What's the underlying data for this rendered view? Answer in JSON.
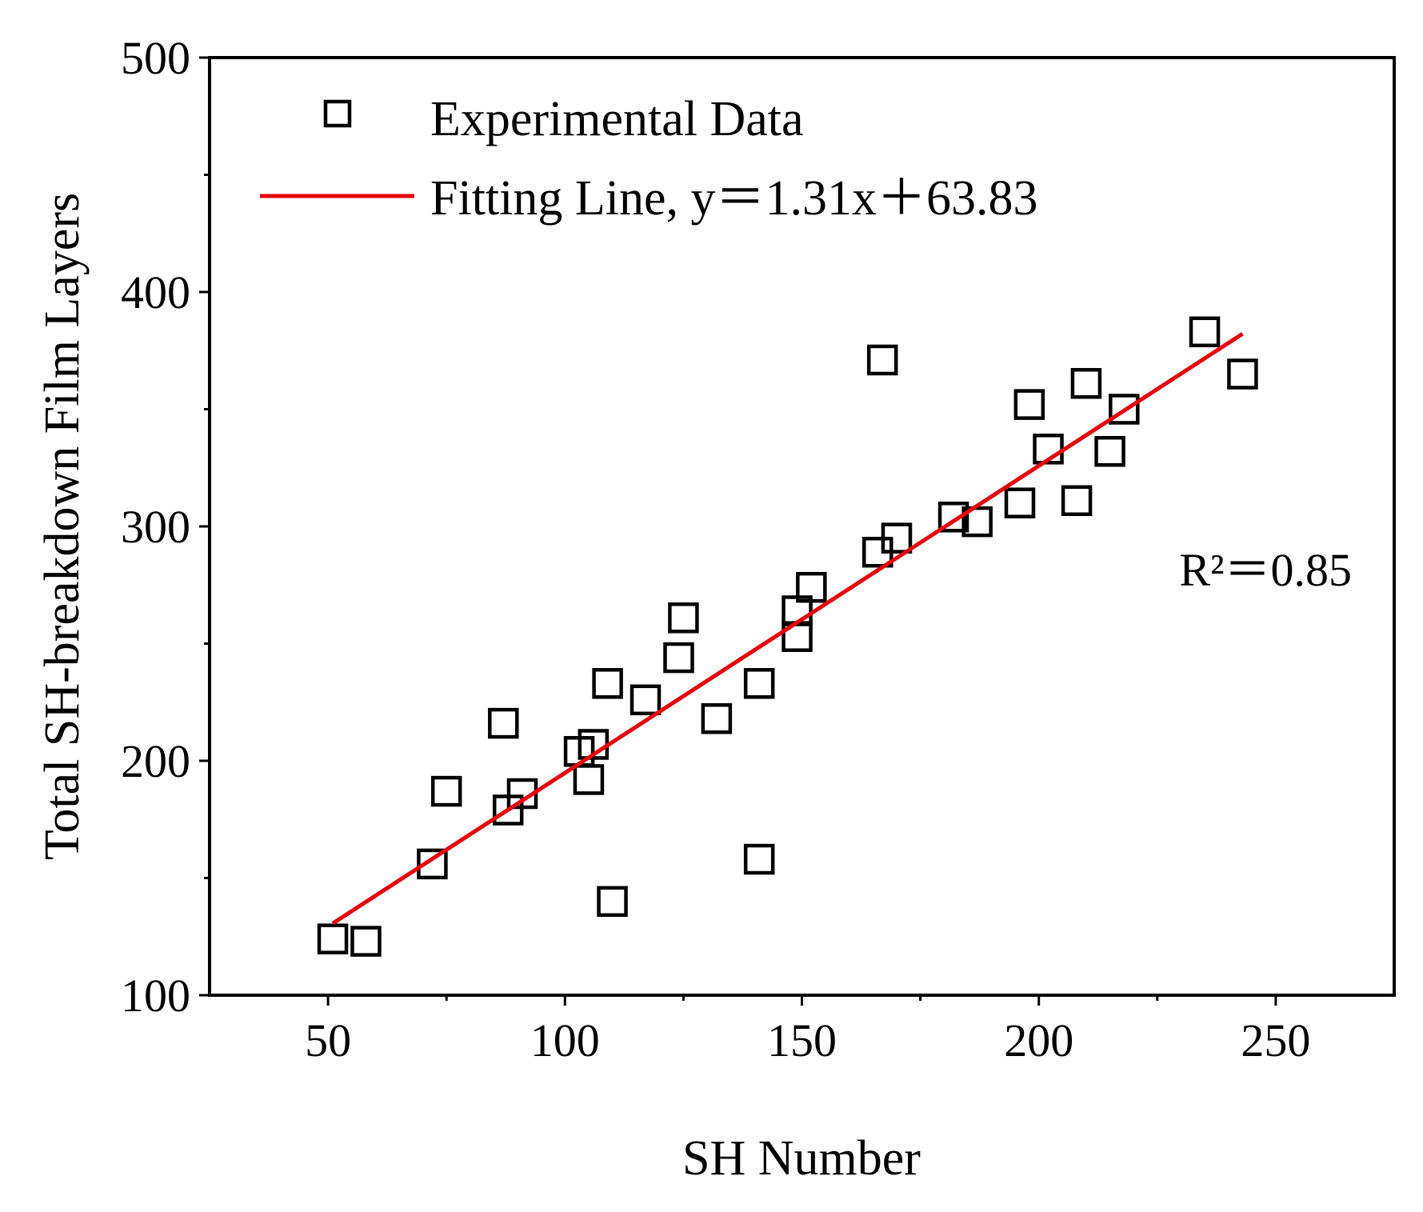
{
  "chart_data": {
    "type": "scatter",
    "title": "",
    "xlabel": "SH Number",
    "ylabel": "Total SH-breakdown Film Layers",
    "xlim": [
      25,
      275
    ],
    "ylim": [
      100,
      500
    ],
    "xticks": [
      50,
      100,
      150,
      200,
      250
    ],
    "yticks": [
      100,
      200,
      300,
      400,
      500
    ],
    "xminor": [
      75,
      125,
      175,
      225
    ],
    "yminor": [
      150,
      250,
      350,
      450
    ],
    "series": [
      {
        "name": "Experimental Data",
        "marker": "open-square",
        "color": "#000000",
        "points": [
          {
            "x": 51,
            "y": 124
          },
          {
            "x": 58,
            "y": 123
          },
          {
            "x": 72,
            "y": 156
          },
          {
            "x": 75,
            "y": 187
          },
          {
            "x": 87,
            "y": 216
          },
          {
            "x": 88,
            "y": 179
          },
          {
            "x": 91,
            "y": 186
          },
          {
            "x": 103,
            "y": 204
          },
          {
            "x": 105,
            "y": 192
          },
          {
            "x": 106,
            "y": 207
          },
          {
            "x": 109,
            "y": 233
          },
          {
            "x": 110,
            "y": 140
          },
          {
            "x": 117,
            "y": 226
          },
          {
            "x": 124,
            "y": 244
          },
          {
            "x": 125,
            "y": 261
          },
          {
            "x": 132,
            "y": 218
          },
          {
            "x": 141,
            "y": 233
          },
          {
            "x": 141,
            "y": 158
          },
          {
            "x": 149,
            "y": 264
          },
          {
            "x": 149,
            "y": 253
          },
          {
            "x": 152,
            "y": 274
          },
          {
            "x": 166,
            "y": 289
          },
          {
            "x": 167,
            "y": 371
          },
          {
            "x": 170,
            "y": 295
          },
          {
            "x": 182,
            "y": 304
          },
          {
            "x": 187,
            "y": 302
          },
          {
            "x": 196,
            "y": 310
          },
          {
            "x": 198,
            "y": 352
          },
          {
            "x": 202,
            "y": 333
          },
          {
            "x": 208,
            "y": 311
          },
          {
            "x": 210,
            "y": 361
          },
          {
            "x": 215,
            "y": 332
          },
          {
            "x": 218,
            "y": 350
          },
          {
            "x": 235,
            "y": 383
          },
          {
            "x": 243,
            "y": 365
          }
        ]
      },
      {
        "name": "Fitting Line, y＝1.31x＋63.83",
        "type": "line",
        "color": "#e8000b",
        "x": [
          51,
          243
        ],
        "y": [
          130.64,
          382.16
        ]
      }
    ],
    "legend": {
      "position": "top-left",
      "entries": [
        "Experimental Data",
        "Fitting Line, y＝1.31x＋63.83"
      ]
    },
    "annotations": [
      {
        "text": "R²＝0.85",
        "position": "right"
      }
    ]
  }
}
